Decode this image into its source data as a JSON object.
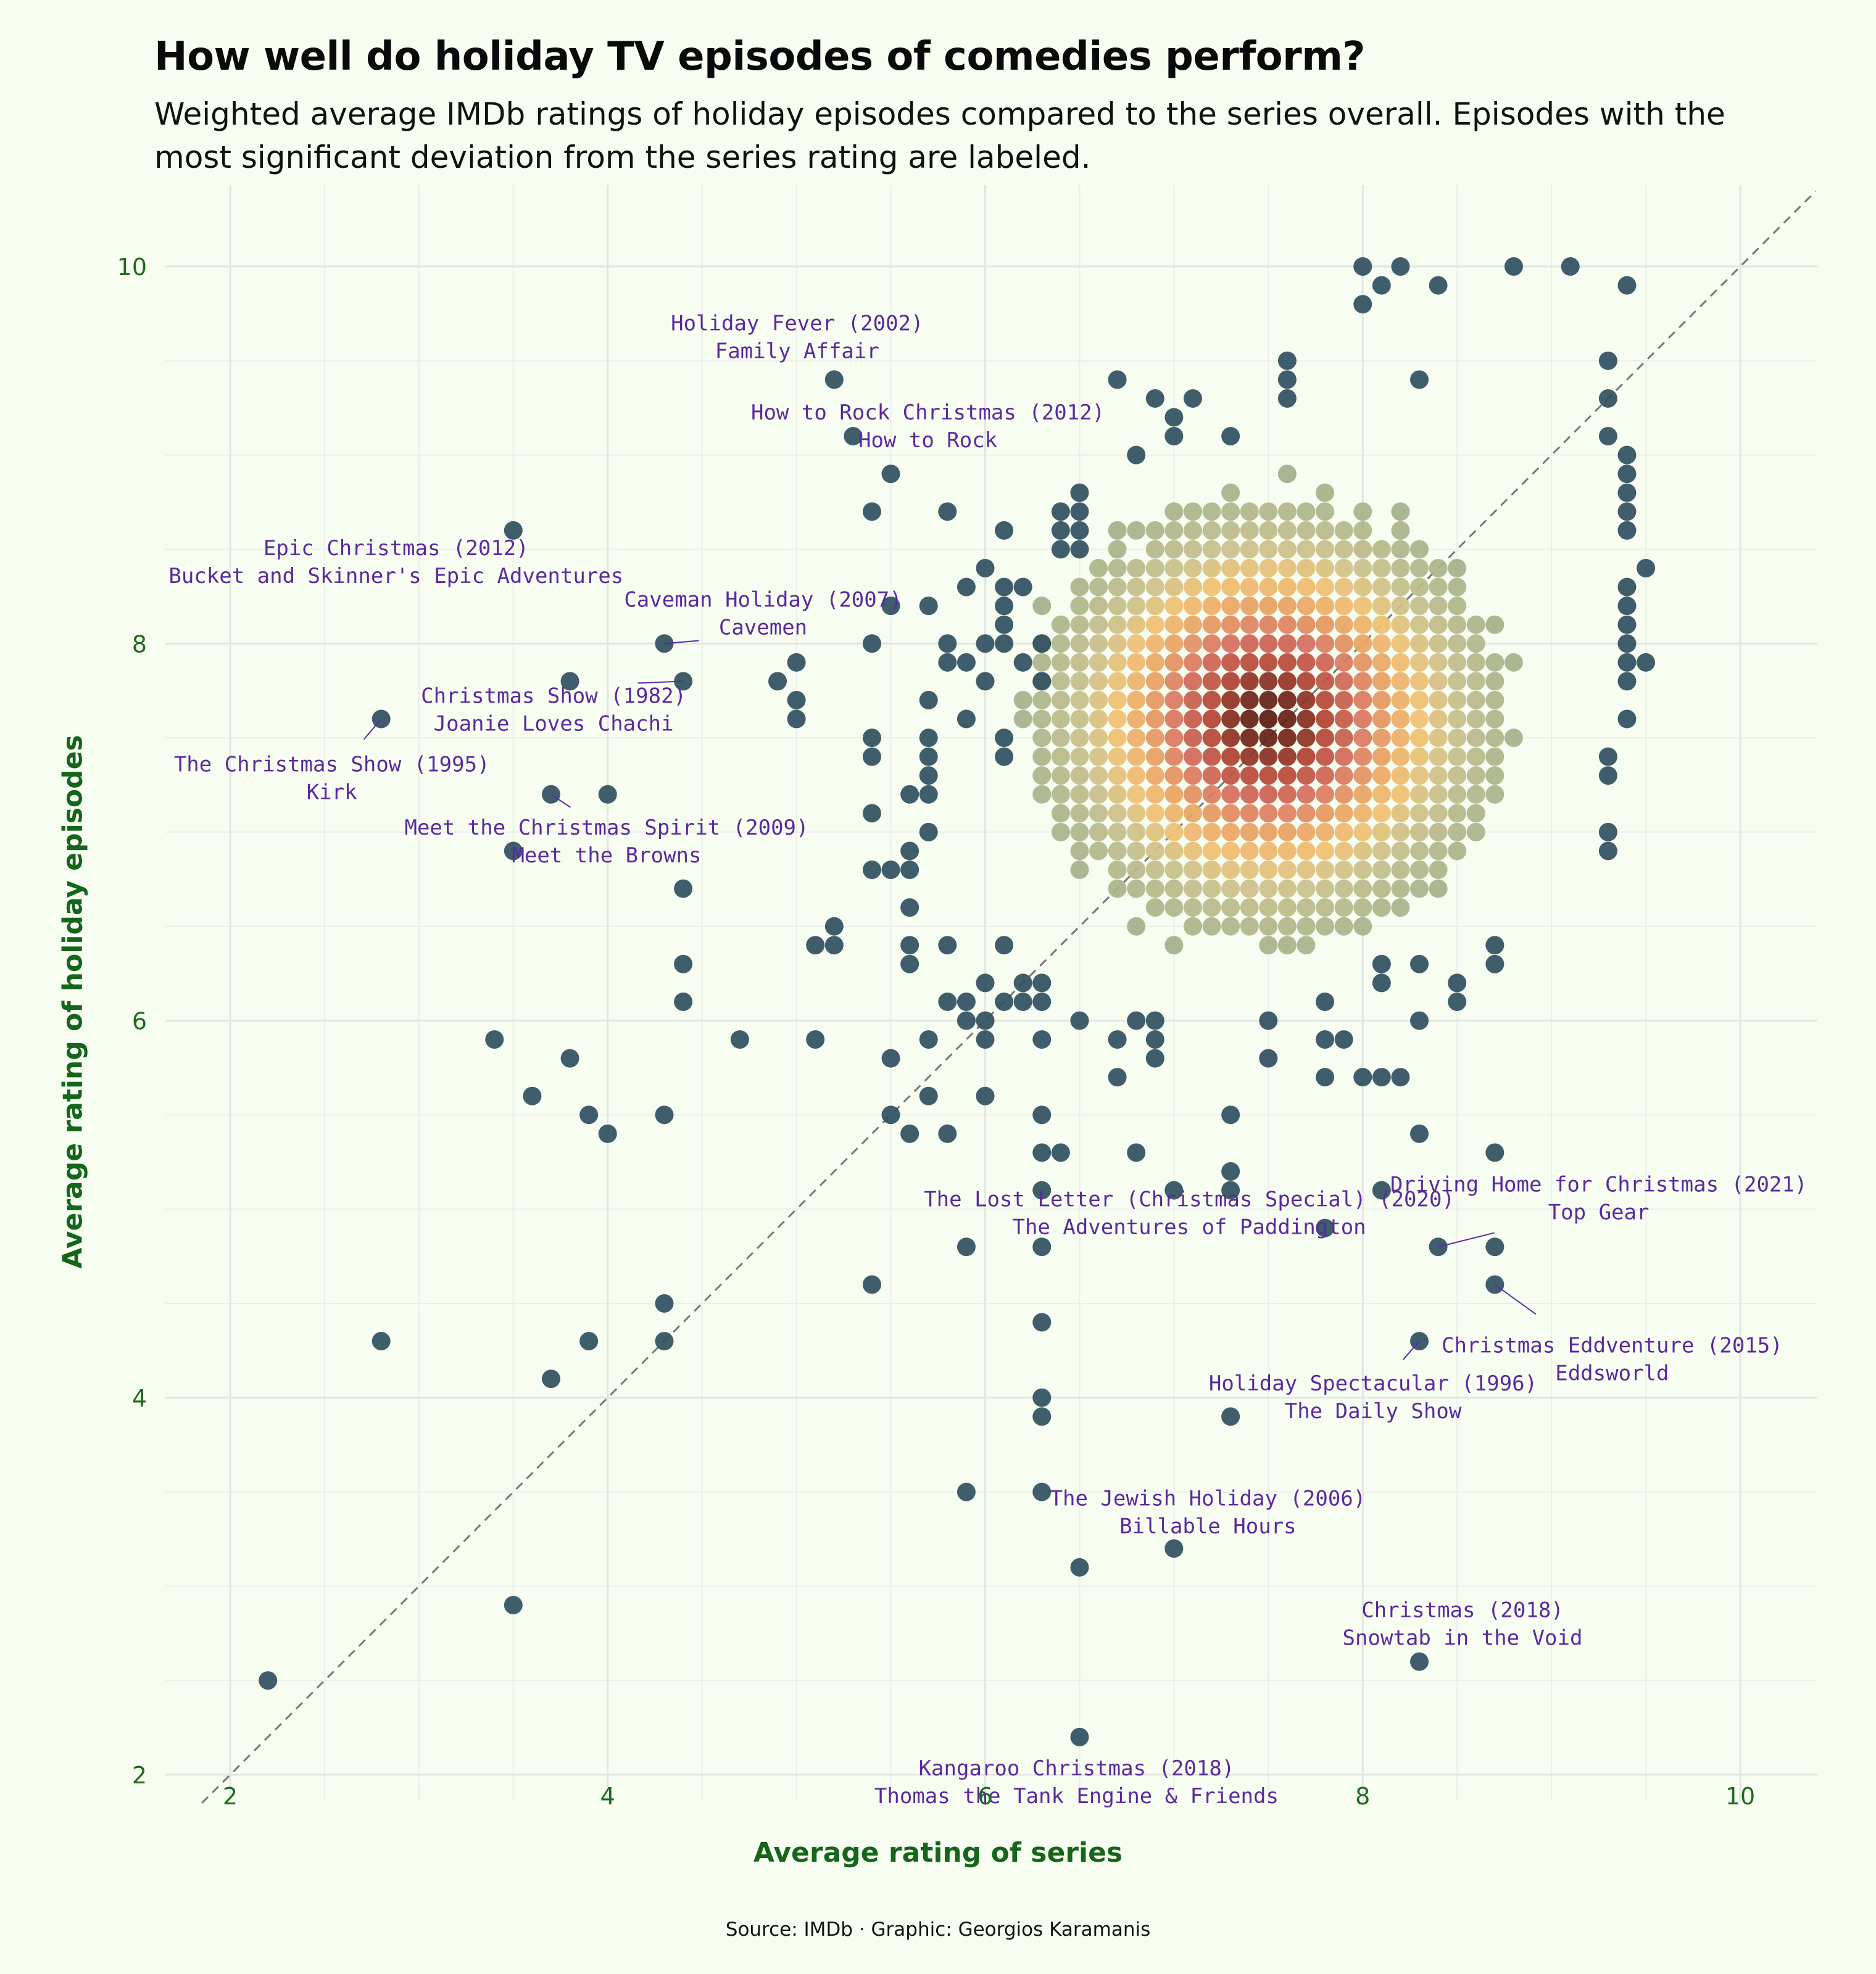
{
  "header": {
    "title": "How well do holiday TV episodes of comedies perform?",
    "subtitle": "Weighted average IMDb ratings of holiday episodes compared to the series overall. Episodes with the most significant deviation from the series rating are labeled."
  },
  "caption": "Source: IMDb · Graphic: Georgios Karamanis",
  "colors": {
    "background": "#f7fdf1",
    "point": "#2f4f5f",
    "label": "#5a2a9e",
    "axis_text": "#1f6b1f",
    "density_low": "#8fa88a",
    "density_mid": "#f0c070",
    "density_high": "#5a1a10"
  },
  "chart_data": {
    "type": "scatter",
    "title": "How well do holiday TV episodes of comedies perform?",
    "xlabel": "Average rating of series",
    "ylabel": "Average rating of holiday episodes",
    "xlim": [
      1.6,
      10.4
    ],
    "ylim": [
      1.85,
      10.4
    ],
    "xticks": [
      2,
      4,
      6,
      8,
      10
    ],
    "yticks": [
      2,
      4,
      6,
      8,
      10
    ],
    "grid": true,
    "reference_line": "y = x (dashed)",
    "density_coloring": "points colored by local density (dark slate → sage → amber → orange → dark red)",
    "points": [
      [
        2.2,
        2.5
      ],
      [
        2.8,
        4.3
      ],
      [
        2.8,
        7.6
      ],
      [
        3.4,
        5.9
      ],
      [
        3.5,
        2.9
      ],
      [
        3.5,
        6.9
      ],
      [
        3.5,
        8.6
      ],
      [
        3.6,
        5.6
      ],
      [
        3.7,
        4.1
      ],
      [
        3.7,
        7.2
      ],
      [
        3.8,
        5.8
      ],
      [
        3.8,
        7.8
      ],
      [
        3.9,
        4.3
      ],
      [
        3.9,
        5.5
      ],
      [
        4.0,
        5.4
      ],
      [
        4.0,
        7.2
      ],
      [
        4.3,
        4.3
      ],
      [
        4.3,
        4.5
      ],
      [
        4.3,
        5.5
      ],
      [
        4.3,
        8.0
      ],
      [
        4.4,
        6.1
      ],
      [
        4.4,
        6.3
      ],
      [
        4.4,
        6.7
      ],
      [
        4.4,
        7.8
      ],
      [
        4.7,
        5.9
      ],
      [
        4.9,
        7.8
      ],
      [
        5.0,
        7.6
      ],
      [
        5.0,
        7.7
      ],
      [
        5.0,
        7.9
      ],
      [
        5.1,
        5.9
      ],
      [
        5.1,
        6.4
      ],
      [
        5.2,
        6.4
      ],
      [
        5.2,
        6.5
      ],
      [
        5.2,
        9.4
      ],
      [
        5.3,
        9.1
      ],
      [
        5.4,
        4.6
      ],
      [
        5.4,
        6.8
      ],
      [
        5.4,
        7.1
      ],
      [
        5.4,
        7.4
      ],
      [
        5.4,
        7.5
      ],
      [
        5.4,
        8.0
      ],
      [
        5.4,
        8.7
      ],
      [
        5.5,
        5.5
      ],
      [
        5.5,
        5.8
      ],
      [
        5.5,
        6.8
      ],
      [
        5.5,
        8.2
      ],
      [
        5.5,
        8.9
      ],
      [
        5.6,
        5.4
      ],
      [
        5.6,
        6.3
      ],
      [
        5.6,
        6.4
      ],
      [
        5.6,
        6.6
      ],
      [
        5.6,
        6.8
      ],
      [
        5.6,
        6.9
      ],
      [
        5.6,
        7.2
      ],
      [
        5.7,
        5.6
      ],
      [
        5.7,
        5.9
      ],
      [
        5.7,
        7.0
      ],
      [
        5.7,
        7.2
      ],
      [
        5.7,
        7.3
      ],
      [
        5.7,
        7.4
      ],
      [
        5.7,
        7.5
      ],
      [
        5.7,
        7.7
      ],
      [
        5.7,
        8.2
      ],
      [
        5.8,
        5.4
      ],
      [
        5.8,
        6.1
      ],
      [
        5.8,
        6.4
      ],
      [
        5.8,
        7.9
      ],
      [
        5.8,
        8.0
      ],
      [
        5.8,
        8.7
      ],
      [
        5.9,
        3.5
      ],
      [
        5.9,
        4.8
      ],
      [
        5.9,
        6.0
      ],
      [
        5.9,
        6.1
      ],
      [
        5.9,
        7.6
      ],
      [
        5.9,
        7.9
      ],
      [
        5.9,
        8.3
      ],
      [
        6.0,
        5.6
      ],
      [
        6.0,
        5.9
      ],
      [
        6.0,
        6.0
      ],
      [
        6.0,
        6.2
      ],
      [
        6.0,
        7.8
      ],
      [
        6.0,
        8.0
      ],
      [
        6.0,
        8.4
      ],
      [
        6.1,
        6.1
      ],
      [
        6.1,
        6.4
      ],
      [
        6.1,
        7.4
      ],
      [
        6.1,
        7.5
      ],
      [
        6.1,
        8.0
      ],
      [
        6.1,
        8.1
      ],
      [
        6.1,
        8.2
      ],
      [
        6.1,
        8.3
      ],
      [
        6.1,
        8.6
      ],
      [
        6.2,
        6.1
      ],
      [
        6.2,
        6.2
      ],
      [
        6.2,
        7.9
      ],
      [
        6.2,
        8.3
      ],
      [
        6.3,
        3.5
      ],
      [
        6.3,
        3.9
      ],
      [
        6.3,
        4.0
      ],
      [
        6.3,
        4.4
      ],
      [
        6.3,
        4.8
      ],
      [
        6.3,
        5.1
      ],
      [
        6.3,
        5.3
      ],
      [
        6.3,
        5.5
      ],
      [
        6.3,
        5.9
      ],
      [
        6.3,
        6.1
      ],
      [
        6.3,
        6.2
      ],
      [
        6.3,
        7.8
      ],
      [
        6.3,
        8.0
      ],
      [
        6.4,
        5.3
      ],
      [
        6.4,
        8.5
      ],
      [
        6.4,
        8.6
      ],
      [
        6.4,
        8.7
      ],
      [
        6.5,
        2.2
      ],
      [
        6.5,
        3.1
      ],
      [
        6.5,
        6.0
      ],
      [
        6.5,
        8.5
      ],
      [
        6.5,
        8.6
      ],
      [
        6.5,
        8.7
      ],
      [
        6.5,
        8.8
      ],
      [
        6.7,
        5.7
      ],
      [
        6.7,
        5.9
      ],
      [
        6.7,
        9.4
      ],
      [
        6.8,
        5.3
      ],
      [
        6.8,
        6.0
      ],
      [
        6.8,
        9.0
      ],
      [
        6.9,
        5.8
      ],
      [
        6.9,
        5.9
      ],
      [
        6.9,
        6.0
      ],
      [
        6.9,
        9.3
      ],
      [
        7.0,
        3.2
      ],
      [
        7.0,
        5.1
      ],
      [
        7.0,
        9.1
      ],
      [
        7.0,
        9.2
      ],
      [
        7.1,
        9.3
      ],
      [
        7.3,
        3.9
      ],
      [
        7.3,
        5.1
      ],
      [
        7.3,
        5.2
      ],
      [
        7.3,
        5.5
      ],
      [
        7.3,
        9.1
      ],
      [
        7.5,
        5.8
      ],
      [
        7.5,
        6.0
      ],
      [
        7.6,
        9.3
      ],
      [
        7.6,
        9.4
      ],
      [
        7.6,
        9.5
      ],
      [
        7.8,
        4.9
      ],
      [
        7.8,
        5.7
      ],
      [
        7.8,
        5.9
      ],
      [
        7.8,
        6.1
      ],
      [
        7.9,
        5.9
      ],
      [
        8.0,
        5.7
      ],
      [
        8.0,
        9.8
      ],
      [
        8.0,
        10.0
      ],
      [
        8.1,
        5.1
      ],
      [
        8.1,
        5.7
      ],
      [
        8.1,
        6.2
      ],
      [
        8.1,
        6.3
      ],
      [
        8.1,
        9.9
      ],
      [
        8.2,
        5.7
      ],
      [
        8.2,
        10.0
      ],
      [
        8.3,
        4.3
      ],
      [
        8.3,
        5.4
      ],
      [
        8.3,
        6.0
      ],
      [
        8.3,
        6.3
      ],
      [
        8.3,
        9.4
      ],
      [
        8.4,
        4.8
      ],
      [
        8.4,
        9.9
      ],
      [
        8.5,
        6.1
      ],
      [
        8.5,
        6.2
      ],
      [
        8.7,
        4.6
      ],
      [
        8.7,
        4.8
      ],
      [
        8.7,
        5.3
      ],
      [
        8.7,
        6.3
      ],
      [
        8.7,
        6.4
      ],
      [
        8.8,
        10.0
      ],
      [
        9.1,
        10.0
      ],
      [
        9.3,
        6.9
      ],
      [
        9.3,
        7.0
      ],
      [
        9.3,
        7.3
      ],
      [
        9.3,
        7.4
      ],
      [
        9.3,
        9.1
      ],
      [
        9.3,
        9.3
      ],
      [
        9.3,
        9.5
      ],
      [
        9.4,
        7.6
      ],
      [
        9.4,
        7.8
      ],
      [
        9.4,
        7.9
      ],
      [
        9.4,
        8.0
      ],
      [
        9.4,
        8.1
      ],
      [
        9.4,
        8.2
      ],
      [
        9.4,
        8.3
      ],
      [
        9.4,
        8.6
      ],
      [
        9.4,
        8.7
      ],
      [
        9.4,
        8.8
      ],
      [
        9.4,
        8.9
      ],
      [
        9.4,
        9.0
      ],
      [
        9.4,
        9.9
      ],
      [
        9.5,
        7.9
      ],
      [
        9.5,
        8.4
      ],
      [
        8.3,
        2.6
      ]
    ],
    "cloud": {
      "center_x": 7.5,
      "center_y": 7.6,
      "spread_x": 0.8,
      "spread_y": 0.75,
      "x_range": [
        6.2,
        9.3
      ],
      "y_range": [
        6.0,
        9.3
      ]
    },
    "annotations": [
      {
        "x": 5.2,
        "y": 9.4,
        "episode": "Holiday Fever (2002)",
        "series": "Family Affair"
      },
      {
        "x": 5.5,
        "y": 8.9,
        "episode": "How to Rock Christmas (2012)",
        "series": "How to Rock"
      },
      {
        "x": 3.5,
        "y": 8.6,
        "episode": "Epic Christmas (2012)",
        "series": "Bucket and Skinner's Epic Adventures"
      },
      {
        "x": 4.3,
        "y": 8.0,
        "episode": "Caveman Holiday (2007)",
        "series": "Cavemen"
      },
      {
        "x": 4.4,
        "y": 7.8,
        "episode": "Christmas Show (1982)",
        "series": "Joanie Loves Chachi"
      },
      {
        "x": 2.8,
        "y": 7.6,
        "episode": "The Christmas Show (1995)",
        "series": "Kirk"
      },
      {
        "x": 3.7,
        "y": 7.2,
        "episode": "Meet the Christmas Spirit (2009)",
        "series": "Meet the Browns"
      },
      {
        "x": 7.8,
        "y": 4.9,
        "episode": "The Lost Letter (Christmas Special) (2020)",
        "series": "The Adventures of Paddington"
      },
      {
        "x": 8.4,
        "y": 4.8,
        "episode": "Driving Home for Christmas (2021)",
        "series": "Top Gear"
      },
      {
        "x": 8.7,
        "y": 4.6,
        "episode": "Christmas Eddventure (2015)",
        "series": "Eddsworld"
      },
      {
        "x": 8.3,
        "y": 4.3,
        "episode": "Holiday Spectacular (1996)",
        "series": "The Daily Show"
      },
      {
        "x": 7.0,
        "y": 3.2,
        "episode": "The Jewish Holiday (2006)",
        "series": "Billable Hours"
      },
      {
        "x": 8.3,
        "y": 2.6,
        "episode": "Christmas (2018)",
        "series": "Snowtab in the Void"
      },
      {
        "x": 6.5,
        "y": 2.2,
        "episode": "Kangaroo Christmas (2018)",
        "series": "Thomas the Tank Engine & Friends"
      }
    ]
  }
}
